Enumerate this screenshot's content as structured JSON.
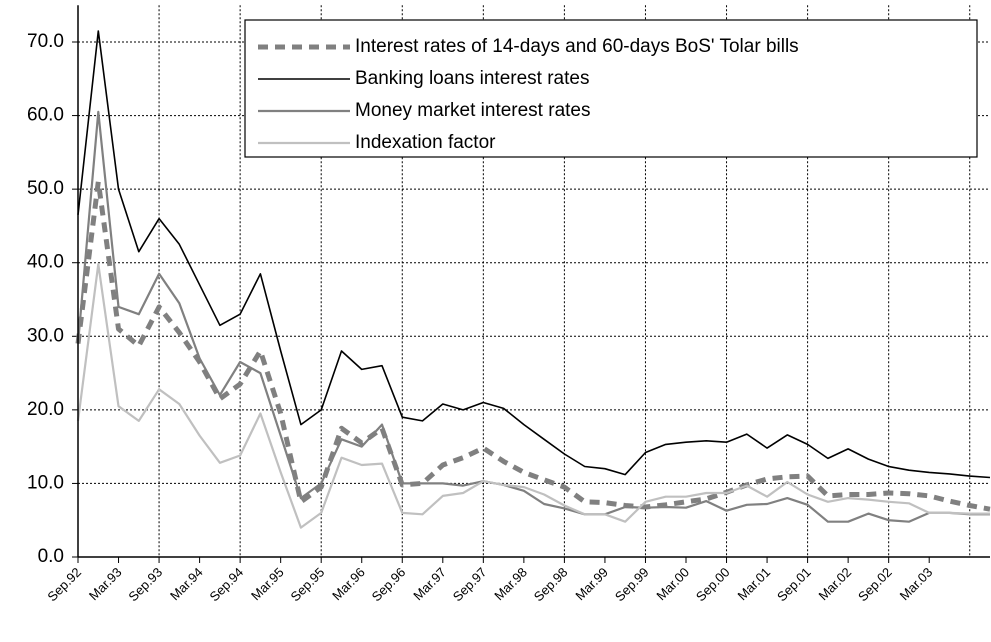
{
  "chart_data": {
    "type": "line",
    "categories": [
      "Sep.92",
      null,
      "Mar.93",
      null,
      "Sep.93",
      null,
      "Mar.94",
      null,
      "Sep.94",
      null,
      "Mar.95",
      null,
      "Sep.95",
      null,
      "Mar.96",
      null,
      "Sep.96",
      null,
      "Mar.97",
      null,
      "Sep.97",
      null,
      "Mar.98",
      null,
      "Sep.98",
      null,
      "Mar.99",
      null,
      "Sep.99",
      null,
      "Mar.00",
      null,
      "Sep.00",
      null,
      "Mar.01",
      null,
      "Sep.01",
      null,
      "Mar.02",
      null,
      "Sep.02",
      null,
      "Mar.03",
      null,
      null,
      null
    ],
    "ylim": [
      0,
      75
    ],
    "yticks": [
      {
        "value": 0,
        "label": "0.0"
      },
      {
        "value": 10,
        "label": "10.0"
      },
      {
        "value": 20,
        "label": "20.0"
      },
      {
        "value": 30,
        "label": "30.0"
      },
      {
        "value": 40,
        "label": "40.0"
      },
      {
        "value": 50,
        "label": "50.0"
      },
      {
        "value": 60,
        "label": "60.0"
      },
      {
        "value": 70,
        "label": "70.0"
      }
    ],
    "grid": true,
    "legend": "top-right",
    "series": [
      {
        "name": "Interest rates of 14-days and 60-days BoS' Tolar bills",
        "color": "#808080",
        "style": "dashed",
        "values": [
          29,
          51,
          31,
          28.7,
          34,
          30.5,
          26.5,
          21.5,
          23.5,
          28,
          19.5,
          7.5,
          9.5,
          17.5,
          15.5,
          17.5,
          9.8,
          10,
          12.5,
          13.5,
          14.8,
          13,
          11.5,
          10.5,
          9.5,
          7.5,
          7.4,
          7,
          6.8,
          7.1,
          7.5,
          7.9,
          8.8,
          9.8,
          10.6,
          10.9,
          11,
          8.3,
          8.5,
          8.5,
          8.7,
          8.6,
          8.3,
          7.6,
          7,
          6.5
        ]
      },
      {
        "name": "Banking loans interest rates",
        "color": "#000000",
        "style": "solid",
        "values": [
          46.5,
          71.5,
          50,
          41.5,
          46,
          42.5,
          37,
          31.5,
          33,
          38.5,
          28,
          18,
          20,
          28,
          25.5,
          26,
          19,
          18.5,
          20.8,
          20,
          21,
          20.2,
          18,
          16,
          14,
          12.3,
          12,
          11.2,
          14.2,
          15.3,
          15.6,
          15.8,
          15.6,
          16.7,
          14.8,
          16.6,
          15.3,
          13.4,
          14.7,
          13.3,
          12.3,
          11.8,
          11.5,
          11.3,
          11,
          10.8
        ]
      },
      {
        "name": "Money market interest rates",
        "color": "#808080",
        "style": "solid",
        "values": [
          29,
          60.5,
          34,
          33,
          38.5,
          34.5,
          27,
          22,
          26.5,
          25,
          16.5,
          8,
          10,
          16,
          15,
          18,
          10,
          10,
          10,
          9.7,
          10.3,
          9.8,
          9,
          7.2,
          6.6,
          5.8,
          5.8,
          6.8,
          6.7,
          6.8,
          6.7,
          7.6,
          6.3,
          7.1,
          7.2,
          8,
          7.1,
          4.8,
          4.8,
          5.9,
          5,
          4.8,
          6,
          6,
          5.8,
          5.8
        ]
      },
      {
        "name": "Indexation factor",
        "color": "#c0c0c0",
        "style": "solid",
        "values": [
          18.5,
          39.8,
          20.5,
          18.5,
          22.8,
          20.8,
          16.5,
          12.8,
          13.8,
          19.5,
          11.5,
          4,
          6,
          13.5,
          12.5,
          12.7,
          6,
          5.8,
          8.3,
          8.7,
          10.3,
          9.8,
          9.5,
          8.5,
          7,
          5.8,
          5.8,
          4.8,
          7.5,
          8.2,
          8.2,
          8.7,
          8.7,
          9.7,
          8.2,
          10.2,
          8.5,
          7.5,
          8,
          7.8,
          7.5,
          7.3,
          6,
          6,
          5.9,
          5.9
        ]
      }
    ]
  }
}
